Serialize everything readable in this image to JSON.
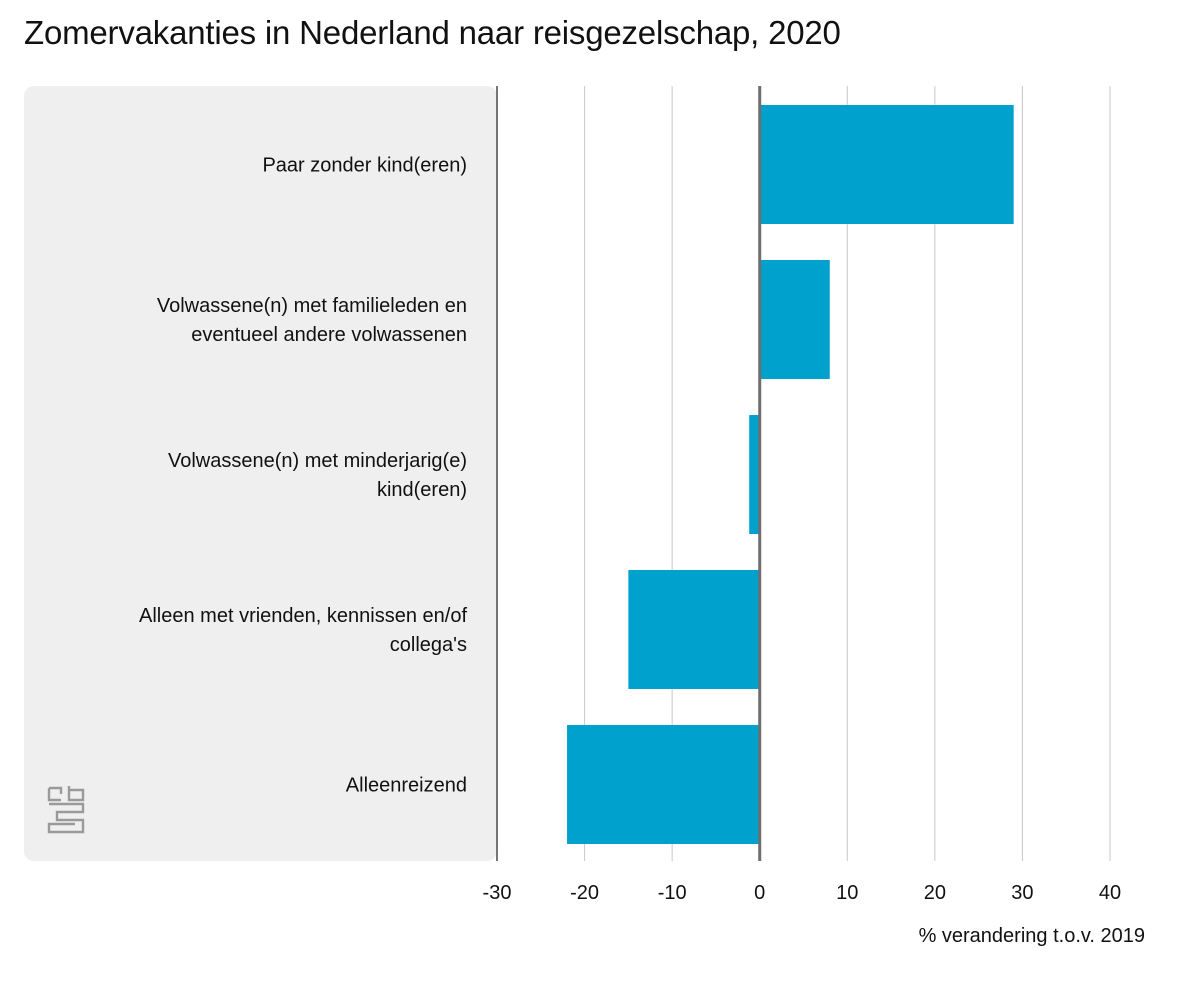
{
  "chart_data": {
    "type": "bar",
    "orientation": "horizontal",
    "title": "Zomervakanties in Nederland naar reisgezelschap, 2020",
    "xlabel": "% verandering t.o.v. 2019",
    "ylabel": "",
    "categories": [
      [
        "Paar zonder kind(eren)"
      ],
      [
        "Volwassene(n) met familieleden en",
        "eventueel andere volwassenen"
      ],
      [
        "Volwassene(n) met minderjarig(e)",
        "kind(eren)"
      ],
      [
        "Alleen met vrienden, kennissen en/of",
        "collega's"
      ],
      [
        "Alleenreizend"
      ]
    ],
    "values": [
      29,
      8,
      -1.2,
      -15,
      -22
    ],
    "xlim": [
      -30,
      40
    ],
    "xticks": [
      "-30",
      "-20",
      "-10",
      "0",
      "10",
      "20",
      "30",
      "40"
    ],
    "grid": true,
    "colors": {
      "bar": "#00a1cd",
      "label_panel": "#efefef",
      "grid": "#c8c8c8",
      "zero_line": "#6e6e6e"
    }
  },
  "logo": {
    "icon": "cbs-logo-icon",
    "text": "cbs"
  }
}
